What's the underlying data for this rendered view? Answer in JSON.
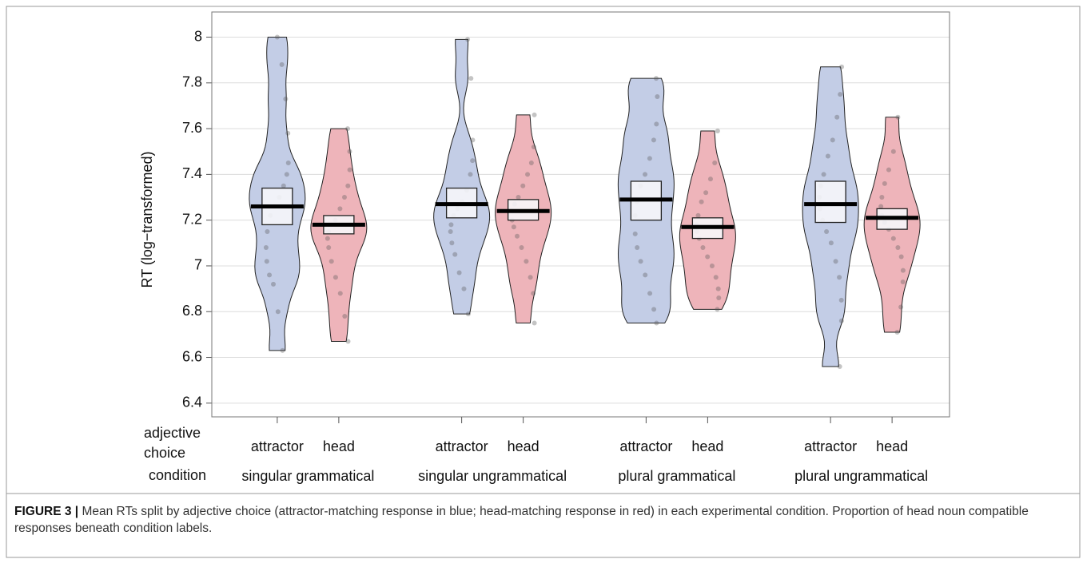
{
  "chart_data": {
    "type": "violin",
    "y_label": "RT (log−transformed)",
    "ylim": [
      6.34,
      8.11
    ],
    "yticks": [
      6.4,
      6.6,
      6.8,
      7,
      7.2,
      7.4,
      7.6,
      7.8,
      8
    ],
    "grid": true,
    "series_label": "adjective choice",
    "category_label": "condition",
    "categories": [
      "singular grammatical",
      "singular ungrammatical",
      "plural grammatical",
      "plural ungrammatical"
    ],
    "series": [
      {
        "name": "attractor",
        "color": "#c3cde6",
        "means": [
          7.26,
          7.27,
          7.29,
          7.27
        ],
        "ci_low": [
          7.18,
          7.21,
          7.2,
          7.19
        ],
        "ci_high": [
          7.34,
          7.34,
          7.37,
          7.37
        ],
        "points": [
          [
            8.0,
            7.88,
            7.73,
            7.58,
            7.45,
            7.4,
            7.35,
            7.3,
            7.26,
            7.22,
            7.15,
            7.08,
            7.02,
            6.96,
            6.92,
            6.8,
            6.63
          ],
          [
            7.99,
            7.82,
            7.55,
            7.46,
            7.4,
            7.33,
            7.28,
            7.25,
            7.22,
            7.18,
            7.15,
            7.1,
            7.05,
            6.97,
            6.9,
            6.79
          ],
          [
            7.82,
            7.74,
            7.62,
            7.55,
            7.47,
            7.4,
            7.35,
            7.28,
            7.22,
            7.14,
            7.08,
            7.02,
            6.96,
            6.88,
            6.81,
            6.75
          ],
          [
            7.87,
            7.75,
            7.65,
            7.55,
            7.48,
            7.4,
            7.35,
            7.3,
            7.25,
            7.2,
            7.15,
            7.1,
            7.02,
            6.95,
            6.85,
            6.76,
            6.56
          ]
        ]
      },
      {
        "name": "head",
        "color": "#eeb4ba",
        "means": [
          7.18,
          7.24,
          7.17,
          7.21
        ],
        "ci_low": [
          7.14,
          7.2,
          7.12,
          7.16
        ],
        "ci_high": [
          7.22,
          7.29,
          7.21,
          7.25
        ],
        "points": [
          [
            7.6,
            7.5,
            7.42,
            7.35,
            7.3,
            7.25,
            7.2,
            7.18,
            7.15,
            7.12,
            7.08,
            7.02,
            6.95,
            6.88,
            6.78,
            6.67
          ],
          [
            7.66,
            7.52,
            7.45,
            7.4,
            7.35,
            7.3,
            7.27,
            7.24,
            7.2,
            7.17,
            7.13,
            7.08,
            7.02,
            6.95,
            6.88,
            6.75
          ],
          [
            7.59,
            7.45,
            7.38,
            7.32,
            7.28,
            7.22,
            7.18,
            7.15,
            7.12,
            7.08,
            7.04,
            7.0,
            6.95,
            6.9,
            6.86,
            6.81
          ],
          [
            7.65,
            7.5,
            7.42,
            7.36,
            7.3,
            7.26,
            7.22,
            7.19,
            7.16,
            7.12,
            7.08,
            7.04,
            6.98,
            6.93,
            6.82,
            6.71
          ]
        ]
      }
    ]
  },
  "caption": {
    "label": "FIGURE 3 |",
    "text": "Mean RTs split by adjective choice (attractor-matching response in blue; head-matching response in red) in each experimental condition. Proportion of head noun compatible responses beneath condition labels."
  }
}
